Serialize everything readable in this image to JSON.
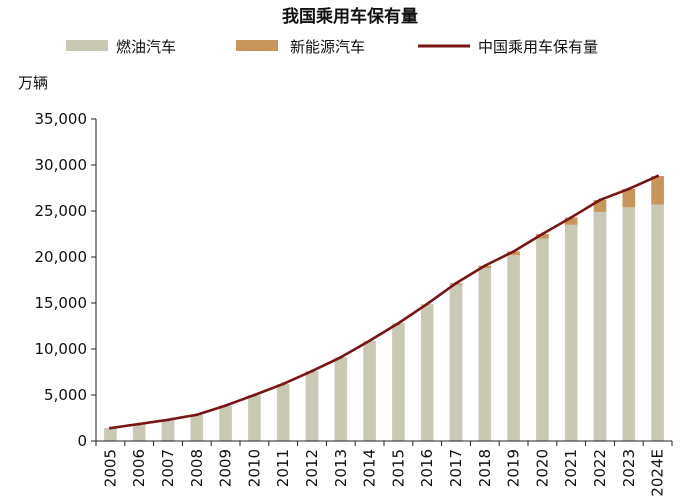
{
  "chart_data": {
    "type": "bar",
    "stacked": true,
    "title": "我国乘用车保有量",
    "unit_label": "万辆",
    "categories": [
      "2005",
      "2006",
      "2007",
      "2008",
      "2009",
      "2010",
      "2011",
      "2012",
      "2013",
      "2014",
      "2015",
      "2016",
      "2017",
      "2018",
      "2019",
      "2020",
      "2021",
      "2022",
      "2023",
      "2024E"
    ],
    "series": [
      {
        "name": "燃油汽车",
        "kind": "bar",
        "color": "#c9c8b4",
        "values": [
          1400,
          1850,
          2300,
          2850,
          3850,
          5000,
          6200,
          7600,
          9100,
          10900,
          12800,
          14900,
          17000,
          18800,
          20200,
          22000,
          23500,
          24900,
          25400,
          25700
        ]
      },
      {
        "name": "新能源汽车",
        "kind": "bar",
        "color": "#c8965a",
        "values": [
          0,
          0,
          0,
          0,
          0,
          0,
          0,
          0,
          0,
          0,
          0,
          0,
          150,
          250,
          400,
          500,
          800,
          1300,
          2000,
          3100
        ]
      },
      {
        "name": "中国乘用车保有量",
        "kind": "line",
        "color": "#7a1414",
        "values": [
          1400,
          1850,
          2300,
          2850,
          3850,
          5000,
          6200,
          7600,
          9100,
          10900,
          12800,
          14900,
          17150,
          19050,
          20600,
          22500,
          24300,
          26200,
          27400,
          28800
        ]
      }
    ],
    "ylim": [
      0,
      35000
    ],
    "yticks": [
      "0",
      "5,000",
      "10,000",
      "15,000",
      "20,000",
      "25,000",
      "30,000",
      "35,000"
    ],
    "ytick_values": [
      0,
      5000,
      10000,
      15000,
      20000,
      25000,
      30000,
      35000
    ],
    "legend_position": "top",
    "grid": false
  }
}
